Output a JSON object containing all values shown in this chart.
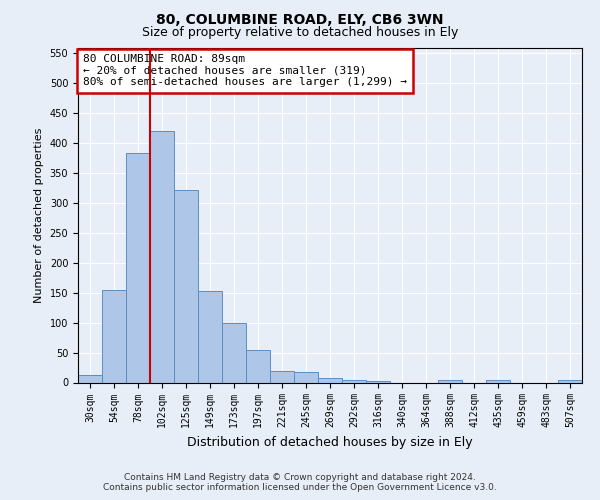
{
  "title": "80, COLUMBINE ROAD, ELY, CB6 3WN",
  "subtitle": "Size of property relative to detached houses in Ely",
  "xlabel": "Distribution of detached houses by size in Ely",
  "ylabel": "Number of detached properties",
  "categories": [
    "30sqm",
    "54sqm",
    "78sqm",
    "102sqm",
    "125sqm",
    "149sqm",
    "173sqm",
    "197sqm",
    "221sqm",
    "245sqm",
    "269sqm",
    "292sqm",
    "316sqm",
    "340sqm",
    "364sqm",
    "388sqm",
    "412sqm",
    "435sqm",
    "459sqm",
    "483sqm",
    "507sqm"
  ],
  "values": [
    13,
    155,
    383,
    420,
    322,
    153,
    100,
    55,
    20,
    17,
    8,
    5,
    3,
    0,
    0,
    5,
    0,
    5,
    0,
    0,
    4
  ],
  "bar_color": "#aec6e8",
  "bar_edge_color": "#5a8fc2",
  "vline_x": 2.5,
  "vline_color": "#cc0000",
  "annotation_text": "80 COLUMBINE ROAD: 89sqm\n← 20% of detached houses are smaller (319)\n80% of semi-detached houses are larger (1,299) →",
  "annotation_box_color": "#ffffff",
  "annotation_box_edge_color": "#cc0000",
  "background_color": "#e8eef8",
  "plot_bg_color": "#e8eef8",
  "ylim": [
    0,
    560
  ],
  "yticks": [
    0,
    50,
    100,
    150,
    200,
    250,
    300,
    350,
    400,
    450,
    500,
    550
  ],
  "footer_line1": "Contains HM Land Registry data © Crown copyright and database right 2024.",
  "footer_line2": "Contains public sector information licensed under the Open Government Licence v3.0.",
  "title_fontsize": 10,
  "subtitle_fontsize": 9,
  "tick_fontsize": 7,
  "ylabel_fontsize": 8,
  "xlabel_fontsize": 9,
  "annotation_fontsize": 8,
  "footer_fontsize": 6.5
}
